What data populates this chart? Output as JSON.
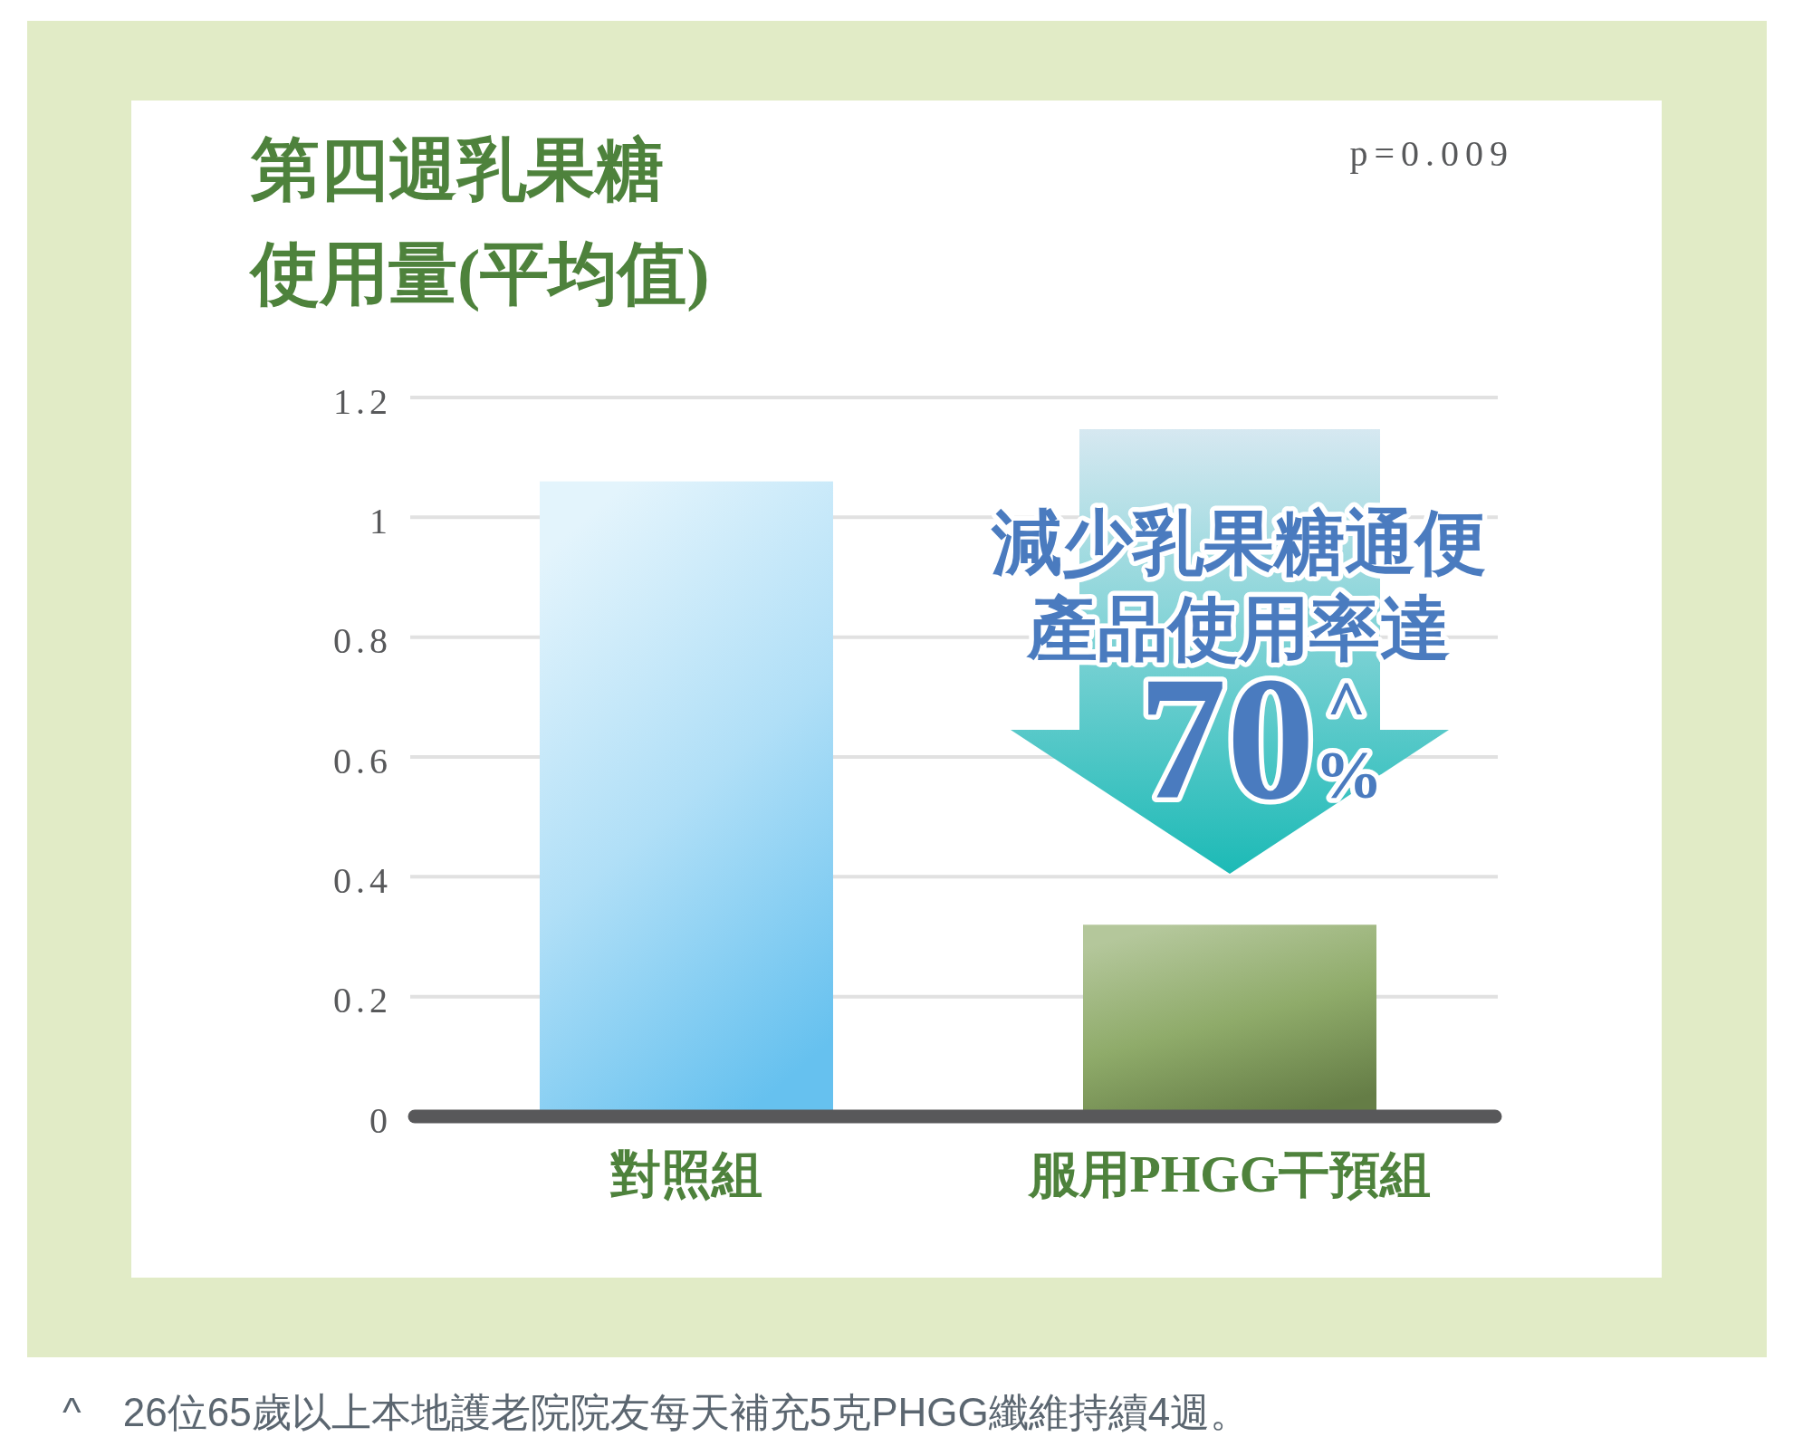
{
  "chart_data": {
    "type": "bar",
    "title": "第四週乳果糖使用量(平均值)",
    "categories": [
      "對照組",
      "服用PHGG干預組"
    ],
    "values": [
      1.06,
      0.32
    ],
    "colors": [
      "#b0dff7",
      "#8fab6a"
    ],
    "ylim": [
      0,
      1.2
    ],
    "yticks": [
      0,
      0.2,
      0.4,
      0.6,
      0.8,
      1,
      1.2
    ],
    "grid": "y",
    "annotations": [
      "p=0.009",
      "減少乳果糖通便產品使用率達",
      "70%$^{^}$",
      "^ 26位65歲以上本地護老院院友每天補充5克PHGG纖維持續4週。"
    ]
  }
}
